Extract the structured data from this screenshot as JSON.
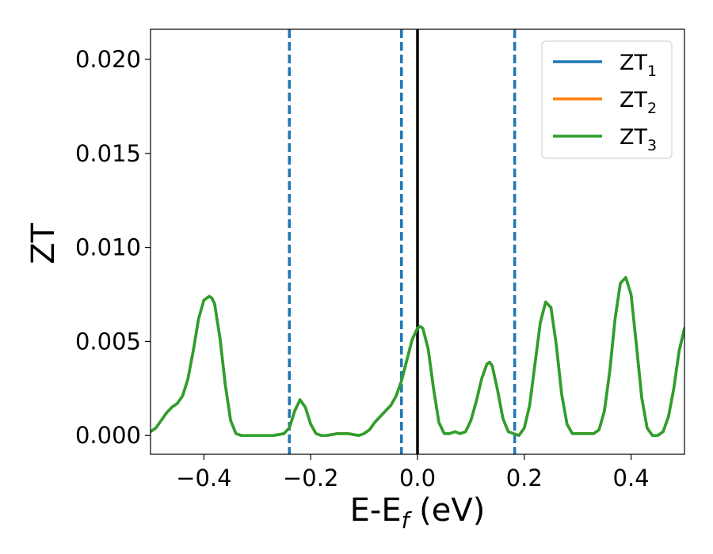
{
  "chart_data": {
    "type": "line",
    "xlabel": "E-E",
    "xlabel_subscript": "f",
    "xlabel_unit": " (eV)",
    "ylabel": "ZT",
    "xlim": [
      -0.5,
      0.5
    ],
    "ylim": [
      -0.001,
      0.0216
    ],
    "x_ticks": [
      -0.4,
      -0.2,
      0.0,
      0.2,
      0.4
    ],
    "x_tick_labels": [
      "−0.4",
      "−0.2",
      "0.0",
      "0.2",
      "0.4"
    ],
    "y_ticks": [
      0.0,
      0.005,
      0.01,
      0.015,
      0.02
    ],
    "y_tick_labels": [
      "0.000",
      "0.005",
      "0.010",
      "0.015",
      "0.020"
    ],
    "grid": false,
    "legend_position": "upper-right",
    "vertical_lines": [
      {
        "x": -0.24,
        "style": "dashed",
        "color": "#1f77b4"
      },
      {
        "x": -0.03,
        "style": "dashed",
        "color": "#1f77b4"
      },
      {
        "x": 0.0,
        "style": "solid",
        "color": "#000000"
      },
      {
        "x": 0.182,
        "style": "dashed",
        "color": "#1f77b4"
      }
    ],
    "series": [
      {
        "name": "ZT",
        "subscript": "1",
        "color": "#1f77b4",
        "x": [
          -0.5,
          -0.49,
          -0.48,
          -0.47,
          -0.46,
          -0.45,
          -0.44,
          -0.43,
          -0.42,
          -0.41,
          -0.4,
          -0.39,
          -0.385,
          -0.38,
          -0.37,
          -0.36,
          -0.35,
          -0.34,
          -0.33,
          -0.31,
          -0.29,
          -0.27,
          -0.25,
          -0.24,
          -0.23,
          -0.22,
          -0.21,
          -0.2,
          -0.19,
          -0.18,
          -0.17,
          -0.15,
          -0.13,
          -0.11,
          -0.1,
          -0.09,
          -0.08,
          -0.07,
          -0.06,
          -0.05,
          -0.04,
          -0.03,
          -0.02,
          -0.01,
          0.0,
          0.005,
          0.01,
          0.02,
          0.03,
          0.04,
          0.05,
          0.06,
          0.07,
          0.08,
          0.09,
          0.1,
          0.11,
          0.12,
          0.13,
          0.135,
          0.14,
          0.15,
          0.16,
          0.17,
          0.18,
          0.19,
          0.2,
          0.21,
          0.22,
          0.23,
          0.24,
          0.25,
          0.26,
          0.27,
          0.28,
          0.29,
          0.3,
          0.31,
          0.32,
          0.33,
          0.34,
          0.35,
          0.36,
          0.37,
          0.38,
          0.39,
          0.4,
          0.41,
          0.42,
          0.43,
          0.44,
          0.45,
          0.46,
          0.47,
          0.48,
          0.49,
          0.5
        ],
        "y": [
          0.0002,
          0.0004,
          0.0008,
          0.0012,
          0.0015,
          0.0017,
          0.0021,
          0.003,
          0.0045,
          0.0062,
          0.0072,
          0.0074,
          0.0073,
          0.007,
          0.0052,
          0.0027,
          0.0008,
          0.0001,
          0.0,
          0.0,
          0.0,
          0.0,
          0.0001,
          0.0004,
          0.0013,
          0.0019,
          0.0015,
          0.0006,
          0.0001,
          0.0,
          0.0,
          0.0001,
          0.0001,
          0.0,
          0.0001,
          0.0003,
          0.0007,
          0.001,
          0.0013,
          0.0016,
          0.0021,
          0.0029,
          0.004,
          0.0051,
          0.0057,
          0.0058,
          0.0057,
          0.0046,
          0.0025,
          0.0007,
          0.0001,
          0.0001,
          0.0002,
          0.0001,
          0.0002,
          0.0008,
          0.0018,
          0.003,
          0.0038,
          0.0039,
          0.0037,
          0.0024,
          0.0009,
          0.0002,
          0.0001,
          0.0,
          0.0004,
          0.0016,
          0.0038,
          0.006,
          0.0071,
          0.0068,
          0.0048,
          0.0022,
          0.0006,
          0.0001,
          0.0001,
          0.0001,
          0.0001,
          0.0001,
          0.0003,
          0.0013,
          0.0034,
          0.0062,
          0.0081,
          0.0084,
          0.0075,
          0.0048,
          0.002,
          0.0004,
          0.0,
          0.0,
          0.0002,
          0.001,
          0.0025,
          0.0045,
          0.0057
        ]
      },
      {
        "name": "ZT",
        "subscript": "2",
        "color": "#ff7f0e",
        "x": [
          -0.5,
          -0.49,
          -0.48,
          -0.47,
          -0.46,
          -0.45,
          -0.44,
          -0.43,
          -0.42,
          -0.41,
          -0.4,
          -0.39,
          -0.385,
          -0.38,
          -0.37,
          -0.36,
          -0.35,
          -0.34,
          -0.33,
          -0.31,
          -0.29,
          -0.27,
          -0.25,
          -0.24,
          -0.23,
          -0.22,
          -0.21,
          -0.2,
          -0.19,
          -0.18,
          -0.17,
          -0.15,
          -0.13,
          -0.11,
          -0.1,
          -0.09,
          -0.08,
          -0.07,
          -0.06,
          -0.05,
          -0.04,
          -0.03,
          -0.02,
          -0.01,
          0.0,
          0.005,
          0.01,
          0.02,
          0.03,
          0.04,
          0.05,
          0.06,
          0.07,
          0.08,
          0.09,
          0.1,
          0.11,
          0.12,
          0.13,
          0.135,
          0.14,
          0.15,
          0.16,
          0.17,
          0.18,
          0.19,
          0.2,
          0.21,
          0.22,
          0.23,
          0.24,
          0.25,
          0.26,
          0.27,
          0.28,
          0.29,
          0.3,
          0.31,
          0.32,
          0.33,
          0.34,
          0.35,
          0.36,
          0.37,
          0.38,
          0.39,
          0.4,
          0.41,
          0.42,
          0.43,
          0.44,
          0.45,
          0.46,
          0.47,
          0.48,
          0.49,
          0.5
        ],
        "y": [
          0.0002,
          0.0004,
          0.0008,
          0.0012,
          0.0015,
          0.0017,
          0.0021,
          0.003,
          0.0045,
          0.0062,
          0.0072,
          0.0074,
          0.0073,
          0.007,
          0.0052,
          0.0027,
          0.0008,
          0.0001,
          0.0,
          0.0,
          0.0,
          0.0,
          0.0001,
          0.0004,
          0.0013,
          0.0019,
          0.0015,
          0.0006,
          0.0001,
          0.0,
          0.0,
          0.0001,
          0.0001,
          0.0,
          0.0001,
          0.0003,
          0.0007,
          0.001,
          0.0013,
          0.0016,
          0.0021,
          0.0029,
          0.004,
          0.0051,
          0.0057,
          0.0058,
          0.0057,
          0.0046,
          0.0025,
          0.0007,
          0.0001,
          0.0001,
          0.0002,
          0.0001,
          0.0002,
          0.0008,
          0.0018,
          0.003,
          0.0038,
          0.0039,
          0.0037,
          0.0024,
          0.0009,
          0.0002,
          0.0001,
          0.0,
          0.0004,
          0.0016,
          0.0038,
          0.006,
          0.0071,
          0.0068,
          0.0048,
          0.0022,
          0.0006,
          0.0001,
          0.0001,
          0.0001,
          0.0001,
          0.0001,
          0.0003,
          0.0013,
          0.0034,
          0.0062,
          0.0081,
          0.0084,
          0.0075,
          0.0048,
          0.002,
          0.0004,
          0.0,
          0.0,
          0.0002,
          0.001,
          0.0025,
          0.0045,
          0.0057
        ]
      },
      {
        "name": "ZT",
        "subscript": "3",
        "color": "#2ca02c",
        "x": [
          -0.5,
          -0.49,
          -0.48,
          -0.47,
          -0.46,
          -0.45,
          -0.44,
          -0.43,
          -0.42,
          -0.41,
          -0.4,
          -0.39,
          -0.385,
          -0.38,
          -0.37,
          -0.36,
          -0.35,
          -0.34,
          -0.33,
          -0.31,
          -0.29,
          -0.27,
          -0.25,
          -0.24,
          -0.23,
          -0.22,
          -0.21,
          -0.2,
          -0.19,
          -0.18,
          -0.17,
          -0.15,
          -0.13,
          -0.11,
          -0.1,
          -0.09,
          -0.08,
          -0.07,
          -0.06,
          -0.05,
          -0.04,
          -0.03,
          -0.02,
          -0.01,
          0.0,
          0.005,
          0.01,
          0.02,
          0.03,
          0.04,
          0.05,
          0.06,
          0.07,
          0.08,
          0.09,
          0.1,
          0.11,
          0.12,
          0.13,
          0.135,
          0.14,
          0.15,
          0.16,
          0.17,
          0.18,
          0.19,
          0.2,
          0.21,
          0.22,
          0.23,
          0.24,
          0.25,
          0.26,
          0.27,
          0.28,
          0.29,
          0.3,
          0.31,
          0.32,
          0.33,
          0.34,
          0.35,
          0.36,
          0.37,
          0.38,
          0.39,
          0.4,
          0.41,
          0.42,
          0.43,
          0.44,
          0.45,
          0.46,
          0.47,
          0.48,
          0.49,
          0.5
        ],
        "y": [
          0.0002,
          0.0004,
          0.0008,
          0.0012,
          0.0015,
          0.0017,
          0.0021,
          0.003,
          0.0045,
          0.0062,
          0.0072,
          0.0074,
          0.0073,
          0.007,
          0.0052,
          0.0027,
          0.0008,
          0.0001,
          0.0,
          0.0,
          0.0,
          0.0,
          0.0001,
          0.0004,
          0.0013,
          0.0019,
          0.0015,
          0.0006,
          0.0001,
          0.0,
          0.0,
          0.0001,
          0.0001,
          0.0,
          0.0001,
          0.0003,
          0.0007,
          0.001,
          0.0013,
          0.0016,
          0.0021,
          0.0029,
          0.004,
          0.0051,
          0.0057,
          0.0058,
          0.0057,
          0.0046,
          0.0025,
          0.0007,
          0.0001,
          0.0001,
          0.0002,
          0.0001,
          0.0002,
          0.0008,
          0.0018,
          0.003,
          0.0038,
          0.0039,
          0.0037,
          0.0024,
          0.0009,
          0.0002,
          0.0001,
          0.0,
          0.0004,
          0.0016,
          0.0038,
          0.006,
          0.0071,
          0.0068,
          0.0048,
          0.0022,
          0.0006,
          0.0001,
          0.0001,
          0.0001,
          0.0001,
          0.0001,
          0.0003,
          0.0013,
          0.0034,
          0.0062,
          0.0081,
          0.0084,
          0.0075,
          0.0048,
          0.002,
          0.0004,
          0.0,
          0.0,
          0.0002,
          0.001,
          0.0025,
          0.0045,
          0.0057
        ]
      }
    ]
  }
}
